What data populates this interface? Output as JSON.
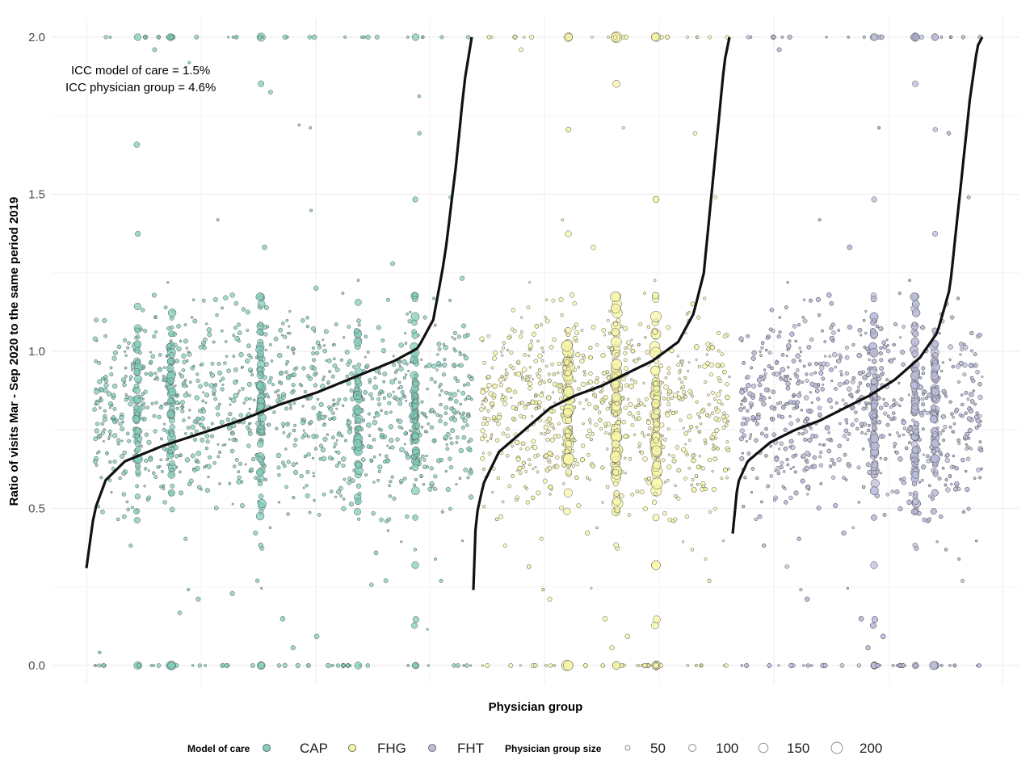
{
  "chart_data": {
    "type": "scatter",
    "xlabel": "Physician group",
    "ylabel": "Ratio of visits Mar - Sep 2020 to the same period 2019",
    "ylim": [
      0,
      2
    ],
    "yticks": [
      "0.0",
      "0.5",
      "1.0",
      "1.5",
      "2.0"
    ],
    "grid": true,
    "annotations": [
      "ICC model of care = 1.5%",
      "ICC physician group = 4.6%"
    ],
    "legend_position": "bottom",
    "color_legend": {
      "title": "Model of care",
      "items": [
        {
          "label": "CAP",
          "color": "#7fcdbb"
        },
        {
          "label": "FHG",
          "color": "#f7f7a8"
        },
        {
          "label": "FHT",
          "color": "#bcbddc"
        }
      ]
    },
    "size_legend": {
      "title": "Physician group size",
      "items": [
        "50",
        "100",
        "150",
        "200"
      ]
    },
    "series": [
      {
        "model": "CAP",
        "color": "#7fcdbb",
        "median_curve": [
          [
            0,
            0.31
          ],
          [
            0.02,
            0.49
          ],
          [
            0.05,
            0.59
          ],
          [
            0.1,
            0.65
          ],
          [
            0.2,
            0.7
          ],
          [
            0.3,
            0.74
          ],
          [
            0.4,
            0.78
          ],
          [
            0.5,
            0.83
          ],
          [
            0.6,
            0.87
          ],
          [
            0.7,
            0.92
          ],
          [
            0.8,
            0.97
          ],
          [
            0.86,
            1.01
          ],
          [
            0.9,
            1.1
          ],
          [
            0.93,
            1.3
          ],
          [
            0.96,
            1.6
          ],
          [
            0.98,
            1.85
          ],
          [
            1.0,
            2.0
          ]
        ]
      },
      {
        "model": "FHG",
        "color": "#f7f7a8",
        "median_curve": [
          [
            0,
            0.24
          ],
          [
            0.01,
            0.47
          ],
          [
            0.04,
            0.58
          ],
          [
            0.1,
            0.68
          ],
          [
            0.2,
            0.75
          ],
          [
            0.3,
            0.82
          ],
          [
            0.4,
            0.86
          ],
          [
            0.5,
            0.89
          ],
          [
            0.6,
            0.93
          ],
          [
            0.7,
            0.97
          ],
          [
            0.8,
            1.03
          ],
          [
            0.86,
            1.12
          ],
          [
            0.9,
            1.25
          ],
          [
            0.93,
            1.5
          ],
          [
            0.96,
            1.75
          ],
          [
            0.98,
            1.92
          ],
          [
            1.0,
            2.0
          ]
        ]
      },
      {
        "model": "FHT",
        "color": "#bcbddc",
        "median_curve": [
          [
            0,
            0.42
          ],
          [
            0.02,
            0.58
          ],
          [
            0.06,
            0.65
          ],
          [
            0.15,
            0.71
          ],
          [
            0.25,
            0.75
          ],
          [
            0.35,
            0.78
          ],
          [
            0.45,
            0.82
          ],
          [
            0.55,
            0.86
          ],
          [
            0.65,
            0.91
          ],
          [
            0.75,
            0.98
          ],
          [
            0.82,
            1.06
          ],
          [
            0.87,
            1.2
          ],
          [
            0.91,
            1.5
          ],
          [
            0.95,
            1.8
          ],
          [
            0.98,
            1.97
          ],
          [
            1.0,
            2.0
          ]
        ]
      }
    ]
  }
}
